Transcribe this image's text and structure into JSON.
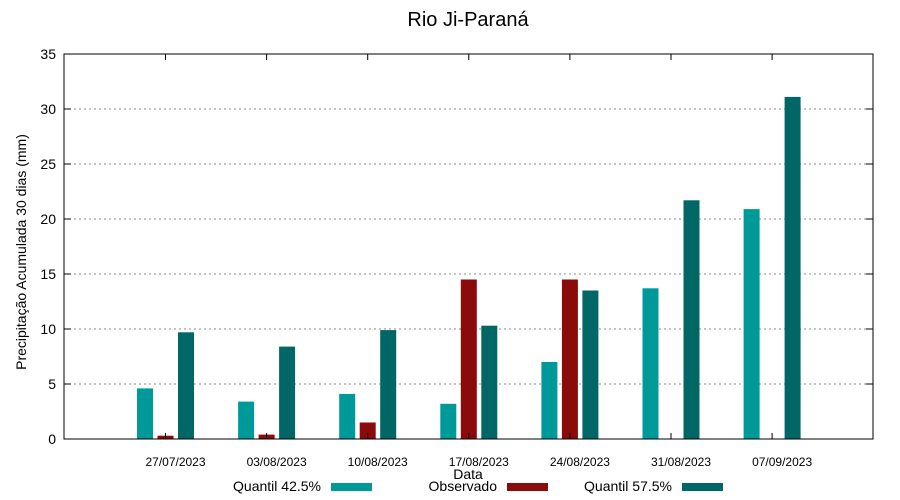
{
  "chart_data": {
    "type": "bar",
    "title": "Rio Ji-Paraná",
    "xlabel": "Data",
    "ylabel": "Precipitação Acumulada 30 dias (mm)",
    "ylim": [
      0,
      35
    ],
    "yticks": [
      0,
      5,
      10,
      15,
      20,
      25,
      30,
      35
    ],
    "grid": true,
    "legend_position": "bottom",
    "categories": [
      "27/07/2023",
      "03/08/2023",
      "10/08/2023",
      "17/08/2023",
      "24/08/2023",
      "31/08/2023",
      "07/09/2023"
    ],
    "series": [
      {
        "name": "Quantil 42.5%",
        "color": "#009999",
        "values": [
          4.6,
          3.4,
          4.1,
          3.2,
          7.0,
          13.7,
          20.9
        ]
      },
      {
        "name": "Observado",
        "color": "#8b0a0a",
        "values": [
          0.3,
          0.4,
          1.5,
          14.5,
          14.5,
          null,
          null
        ]
      },
      {
        "name": "Quantil 57.5%",
        "color": "#006666",
        "values": [
          9.7,
          8.4,
          9.9,
          10.3,
          13.5,
          21.7,
          31.1
        ]
      }
    ]
  }
}
